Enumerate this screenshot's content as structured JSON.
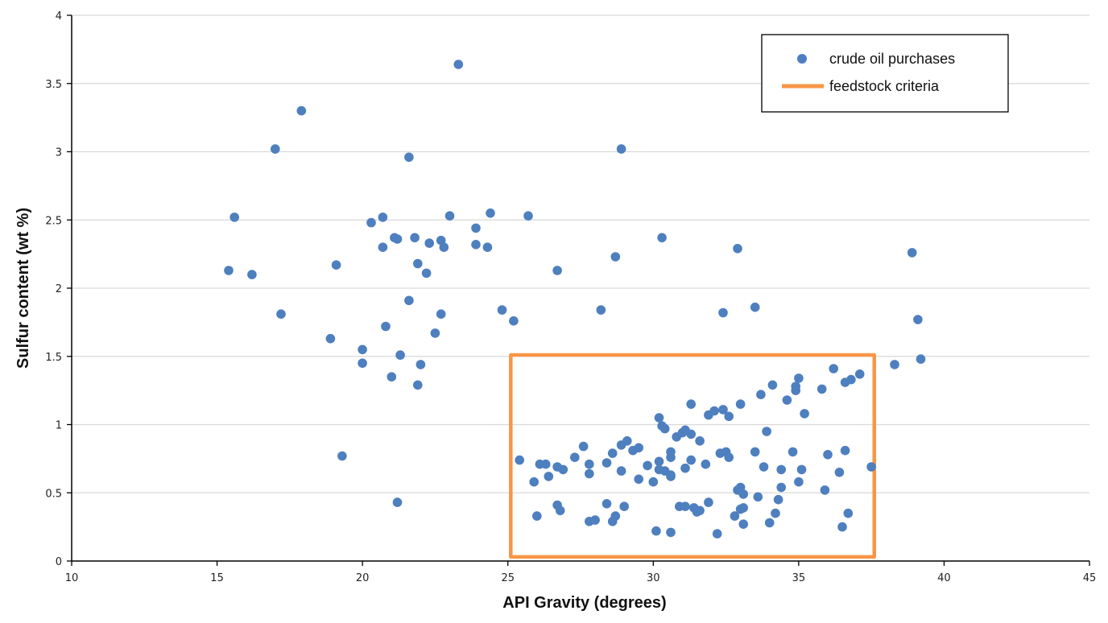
{
  "colors": {
    "marker": "#4E7FBF",
    "criteria": "#F79646",
    "gridline": "#D9D9D9",
    "axis": "#000000"
  },
  "legend": {
    "items": [
      {
        "label": "crude oil purchases",
        "kind": "marker"
      },
      {
        "label": "feedstock criteria",
        "kind": "line"
      }
    ]
  },
  "chart_data": {
    "type": "scatter",
    "title": "",
    "xlabel": "API Gravity (degrees)",
    "ylabel": "Sulfur content (wt %)",
    "xlim": [
      10,
      45
    ],
    "ylim": [
      0,
      4
    ],
    "xticks": [
      10,
      15,
      20,
      25,
      30,
      35,
      40,
      45
    ],
    "yticks": [
      0,
      0.5,
      1,
      1.5,
      2,
      2.5,
      3,
      3.5,
      4
    ],
    "grid": {
      "horizontal": true,
      "vertical": false
    },
    "legend_position": "top-right",
    "criteria_box": {
      "name": "feedstock criteria",
      "x": [
        25.1,
        37.6
      ],
      "y": [
        0.03,
        1.51
      ]
    },
    "series": [
      {
        "name": "crude oil purchases",
        "points": [
          [
            23.3,
            3.64
          ],
          [
            17.9,
            3.3
          ],
          [
            17.0,
            3.02
          ],
          [
            28.9,
            3.02
          ],
          [
            21.6,
            2.96
          ],
          [
            15.6,
            2.52
          ],
          [
            20.3,
            2.48
          ],
          [
            20.7,
            2.52
          ],
          [
            23.0,
            2.53
          ],
          [
            24.4,
            2.55
          ],
          [
            25.7,
            2.53
          ],
          [
            21.1,
            2.37
          ],
          [
            21.2,
            2.36
          ],
          [
            21.8,
            2.37
          ],
          [
            22.7,
            2.35
          ],
          [
            23.9,
            2.44
          ],
          [
            20.7,
            2.3
          ],
          [
            22.3,
            2.33
          ],
          [
            22.8,
            2.3
          ],
          [
            23.9,
            2.32
          ],
          [
            24.3,
            2.3
          ],
          [
            30.3,
            2.37
          ],
          [
            32.9,
            2.29
          ],
          [
            38.9,
            2.26
          ],
          [
            19.1,
            2.17
          ],
          [
            15.4,
            2.13
          ],
          [
            16.2,
            2.1
          ],
          [
            21.9,
            2.18
          ],
          [
            22.2,
            2.11
          ],
          [
            26.7,
            2.13
          ],
          [
            28.7,
            2.23
          ],
          [
            21.6,
            1.91
          ],
          [
            17.2,
            1.81
          ],
          [
            22.7,
            1.81
          ],
          [
            24.8,
            1.84
          ],
          [
            25.2,
            1.76
          ],
          [
            28.2,
            1.84
          ],
          [
            32.4,
            1.82
          ],
          [
            33.5,
            1.86
          ],
          [
            39.1,
            1.77
          ],
          [
            20.8,
            1.72
          ],
          [
            22.5,
            1.67
          ],
          [
            18.9,
            1.63
          ],
          [
            20.0,
            1.55
          ],
          [
            20.0,
            1.45
          ],
          [
            21.3,
            1.51
          ],
          [
            22.0,
            1.44
          ],
          [
            21.0,
            1.35
          ],
          [
            21.9,
            1.29
          ],
          [
            38.3,
            1.44
          ],
          [
            39.2,
            1.48
          ],
          [
            19.3,
            0.77
          ],
          [
            21.2,
            0.43
          ],
          [
            25.4,
            0.74
          ],
          [
            25.9,
            0.58
          ],
          [
            26.3,
            0.71
          ],
          [
            26.4,
            0.62
          ],
          [
            26.1,
            0.71
          ],
          [
            26.7,
            0.69
          ],
          [
            26.9,
            0.67
          ],
          [
            27.3,
            0.76
          ],
          [
            27.6,
            0.84
          ],
          [
            27.8,
            0.71
          ],
          [
            27.8,
            0.64
          ],
          [
            28.4,
            0.72
          ],
          [
            28.6,
            0.79
          ],
          [
            28.9,
            0.85
          ],
          [
            29.1,
            0.88
          ],
          [
            28.9,
            0.66
          ],
          [
            29.3,
            0.81
          ],
          [
            29.5,
            0.6
          ],
          [
            29.5,
            0.83
          ],
          [
            29.8,
            0.7
          ],
          [
            30.0,
            0.58
          ],
          [
            30.2,
            0.73
          ],
          [
            30.2,
            0.67
          ],
          [
            30.4,
            0.66
          ],
          [
            30.6,
            0.76
          ],
          [
            30.6,
            0.8
          ],
          [
            30.6,
            0.63
          ],
          [
            30.6,
            0.62
          ],
          [
            30.2,
            1.05
          ],
          [
            30.3,
            0.99
          ],
          [
            30.4,
            0.97
          ],
          [
            30.8,
            0.91
          ],
          [
            31.0,
            0.94
          ],
          [
            31.1,
            0.96
          ],
          [
            31.3,
            0.93
          ],
          [
            31.6,
            0.88
          ],
          [
            31.3,
            1.15
          ],
          [
            31.1,
            0.68
          ],
          [
            31.3,
            0.74
          ],
          [
            31.8,
            0.71
          ],
          [
            31.9,
            1.07
          ],
          [
            32.1,
            1.1
          ],
          [
            32.4,
            1.11
          ],
          [
            32.6,
            1.06
          ],
          [
            33.0,
            1.15
          ],
          [
            32.3,
            0.79
          ],
          [
            32.5,
            0.8
          ],
          [
            32.6,
            0.76
          ],
          [
            33.5,
            0.8
          ],
          [
            33.8,
            0.69
          ],
          [
            33.9,
            0.95
          ],
          [
            33.7,
            1.22
          ],
          [
            34.1,
            1.29
          ],
          [
            34.6,
            1.18
          ],
          [
            34.4,
            0.67
          ],
          [
            34.8,
            0.8
          ],
          [
            34.9,
            1.25
          ],
          [
            34.9,
            1.28
          ],
          [
            35.0,
            1.34
          ],
          [
            35.2,
            1.08
          ],
          [
            35.1,
            0.67
          ],
          [
            35.0,
            0.58
          ],
          [
            34.4,
            0.54
          ],
          [
            34.3,
            0.45
          ],
          [
            33.0,
            0.54
          ],
          [
            32.9,
            0.52
          ],
          [
            33.1,
            0.49
          ],
          [
            33.6,
            0.47
          ],
          [
            35.8,
            1.26
          ],
          [
            36.2,
            1.41
          ],
          [
            36.6,
            1.31
          ],
          [
            36.8,
            1.33
          ],
          [
            37.1,
            1.37
          ],
          [
            36.0,
            0.78
          ],
          [
            36.4,
            0.65
          ],
          [
            36.6,
            0.81
          ],
          [
            35.9,
            0.52
          ],
          [
            37.5,
            0.69
          ],
          [
            26.0,
            0.33
          ],
          [
            26.7,
            0.41
          ],
          [
            26.8,
            0.37
          ],
          [
            27.8,
            0.29
          ],
          [
            28.0,
            0.3
          ],
          [
            28.4,
            0.42
          ],
          [
            28.6,
            0.29
          ],
          [
            28.7,
            0.33
          ],
          [
            29.0,
            0.4
          ],
          [
            30.1,
            0.22
          ],
          [
            30.6,
            0.21
          ],
          [
            30.9,
            0.4
          ],
          [
            31.1,
            0.4
          ],
          [
            31.4,
            0.39
          ],
          [
            31.5,
            0.36
          ],
          [
            31.6,
            0.37
          ],
          [
            31.9,
            0.43
          ],
          [
            32.2,
            0.2
          ],
          [
            32.8,
            0.33
          ],
          [
            33.0,
            0.38
          ],
          [
            33.1,
            0.39
          ],
          [
            33.1,
            0.27
          ],
          [
            34.0,
            0.28
          ],
          [
            34.2,
            0.35
          ],
          [
            36.5,
            0.25
          ],
          [
            36.7,
            0.35
          ]
        ]
      }
    ]
  }
}
